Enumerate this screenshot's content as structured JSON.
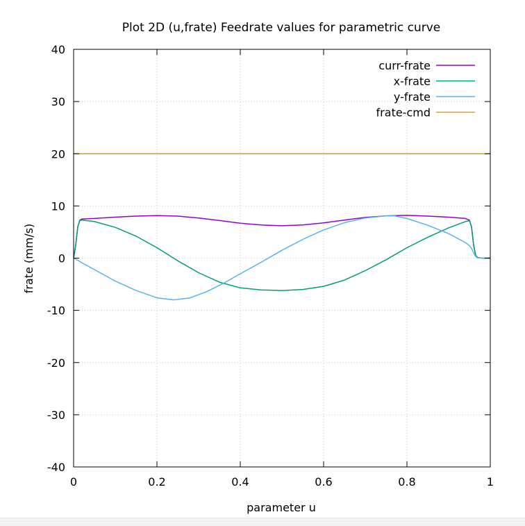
{
  "chart_data": {
    "type": "line",
    "title": "Plot 2D (u,frate) Feedrate values for parametric curve",
    "xlabel": "parameter u",
    "ylabel": "frate (mm/s)",
    "xlim": [
      0,
      1
    ],
    "ylim": [
      -40,
      40
    ],
    "x_ticks": [
      "0",
      "0.2",
      "0.4",
      "0.6",
      "0.8",
      "1"
    ],
    "y_ticks": [
      "-40",
      "-30",
      "-20",
      "-10",
      "0",
      "10",
      "20",
      "30",
      "40"
    ],
    "grid": true,
    "legend_position": "top-right",
    "series": [
      {
        "name": "curr-frate",
        "color": "#9400d3",
        "x": [
          0,
          0.005,
          0.01,
          0.015,
          0.02,
          0.05,
          0.1,
          0.15,
          0.2,
          0.25,
          0.3,
          0.35,
          0.4,
          0.45,
          0.5,
          0.55,
          0.6,
          0.65,
          0.7,
          0.75,
          0.8,
          0.85,
          0.9,
          0.94,
          0.95,
          0.955,
          0.96,
          0.965,
          0.97,
          0.98,
          1.0
        ],
        "y": [
          0,
          2.5,
          6.0,
          7.3,
          7.5,
          7.6,
          7.85,
          8.05,
          8.15,
          8.05,
          7.7,
          7.2,
          6.7,
          6.35,
          6.2,
          6.35,
          6.75,
          7.3,
          7.8,
          8.1,
          8.2,
          8.05,
          7.85,
          7.6,
          7.3,
          6.0,
          2.5,
          0.5,
          0.1,
          0,
          0
        ]
      },
      {
        "name": "x-frate",
        "color": "#009e73",
        "x": [
          0,
          0.005,
          0.01,
          0.015,
          0.02,
          0.05,
          0.1,
          0.15,
          0.2,
          0.25,
          0.3,
          0.35,
          0.4,
          0.45,
          0.5,
          0.55,
          0.6,
          0.65,
          0.7,
          0.75,
          0.8,
          0.85,
          0.9,
          0.94,
          0.95,
          0.955,
          0.96,
          0.965,
          0.97,
          0.98,
          1.0
        ],
        "y": [
          0,
          2.5,
          6.0,
          7.2,
          7.3,
          7.0,
          5.9,
          4.2,
          2.0,
          -0.5,
          -2.8,
          -4.6,
          -5.7,
          -6.1,
          -6.2,
          -6.0,
          -5.4,
          -4.2,
          -2.4,
          -0.3,
          2.0,
          4.0,
          5.8,
          7.0,
          7.2,
          6.0,
          2.5,
          0.5,
          0.1,
          0,
          0
        ]
      },
      {
        "name": "y-frate",
        "color": "#56b4e9",
        "x": [
          0,
          0.01,
          0.02,
          0.05,
          0.1,
          0.15,
          0.2,
          0.24,
          0.28,
          0.32,
          0.36,
          0.4,
          0.45,
          0.5,
          0.55,
          0.6,
          0.65,
          0.7,
          0.75,
          0.77,
          0.8,
          0.85,
          0.9,
          0.94,
          0.95,
          0.955,
          0.96,
          0.965,
          0.97,
          0.98,
          1.0
        ],
        "y": [
          0,
          -0.4,
          -0.9,
          -2.2,
          -4.4,
          -6.2,
          -7.6,
          -8.0,
          -7.6,
          -6.4,
          -4.8,
          -3.0,
          -0.8,
          1.5,
          3.6,
          5.4,
          6.8,
          7.7,
          8.1,
          8.1,
          7.6,
          6.3,
          4.7,
          3.0,
          2.4,
          1.9,
          1.0,
          0.3,
          0.05,
          0,
          0
        ]
      },
      {
        "name": "frate-cmd",
        "color": "#e69f00",
        "x": [
          0,
          1
        ],
        "y": [
          20,
          20
        ]
      }
    ]
  }
}
